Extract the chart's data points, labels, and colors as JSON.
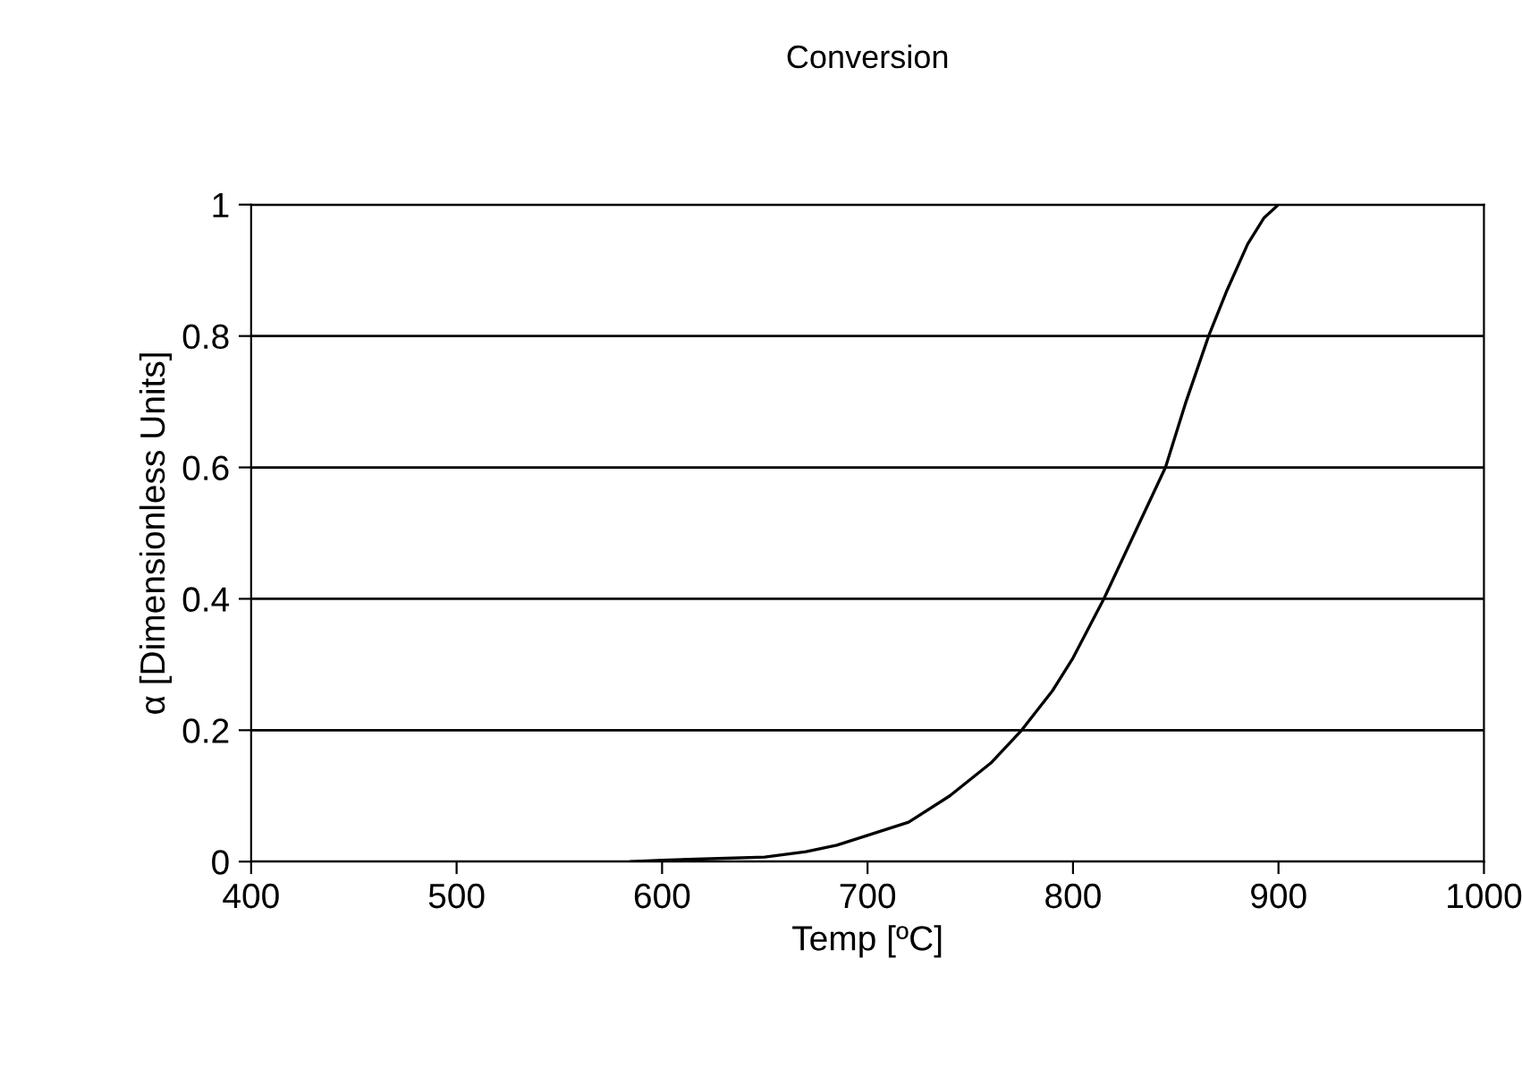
{
  "chart_data": {
    "type": "line",
    "title": "Conversion",
    "xlabel": "Temp [ºC]",
    "ylabel": "α [Dimensionless Units]",
    "series": [
      {
        "color": "#000000",
        "x": [
          585,
          600,
          620,
          650,
          670,
          685,
          700,
          720,
          740,
          760,
          775,
          790,
          800,
          815,
          830,
          845,
          855,
          866,
          875,
          885,
          893,
          900
        ],
        "values": [
          0,
          0.002,
          0.004,
          0.007,
          0.015,
          0.025,
          0.04,
          0.06,
          0.1,
          0.15,
          0.2,
          0.26,
          0.31,
          0.4,
          0.5,
          0.6,
          0.7,
          0.8,
          0.87,
          0.94,
          0.98,
          1.0
        ]
      }
    ],
    "xlim": [
      400,
      1000
    ],
    "xticks": [
      400,
      500,
      600,
      700,
      800,
      900,
      1000
    ],
    "ylim": [
      0,
      1
    ],
    "yticks": [
      0,
      0.2,
      0.4,
      0.6,
      0.8,
      1
    ],
    "grid": "y",
    "legend": false,
    "marker": "none",
    "line_style": "solid"
  }
}
